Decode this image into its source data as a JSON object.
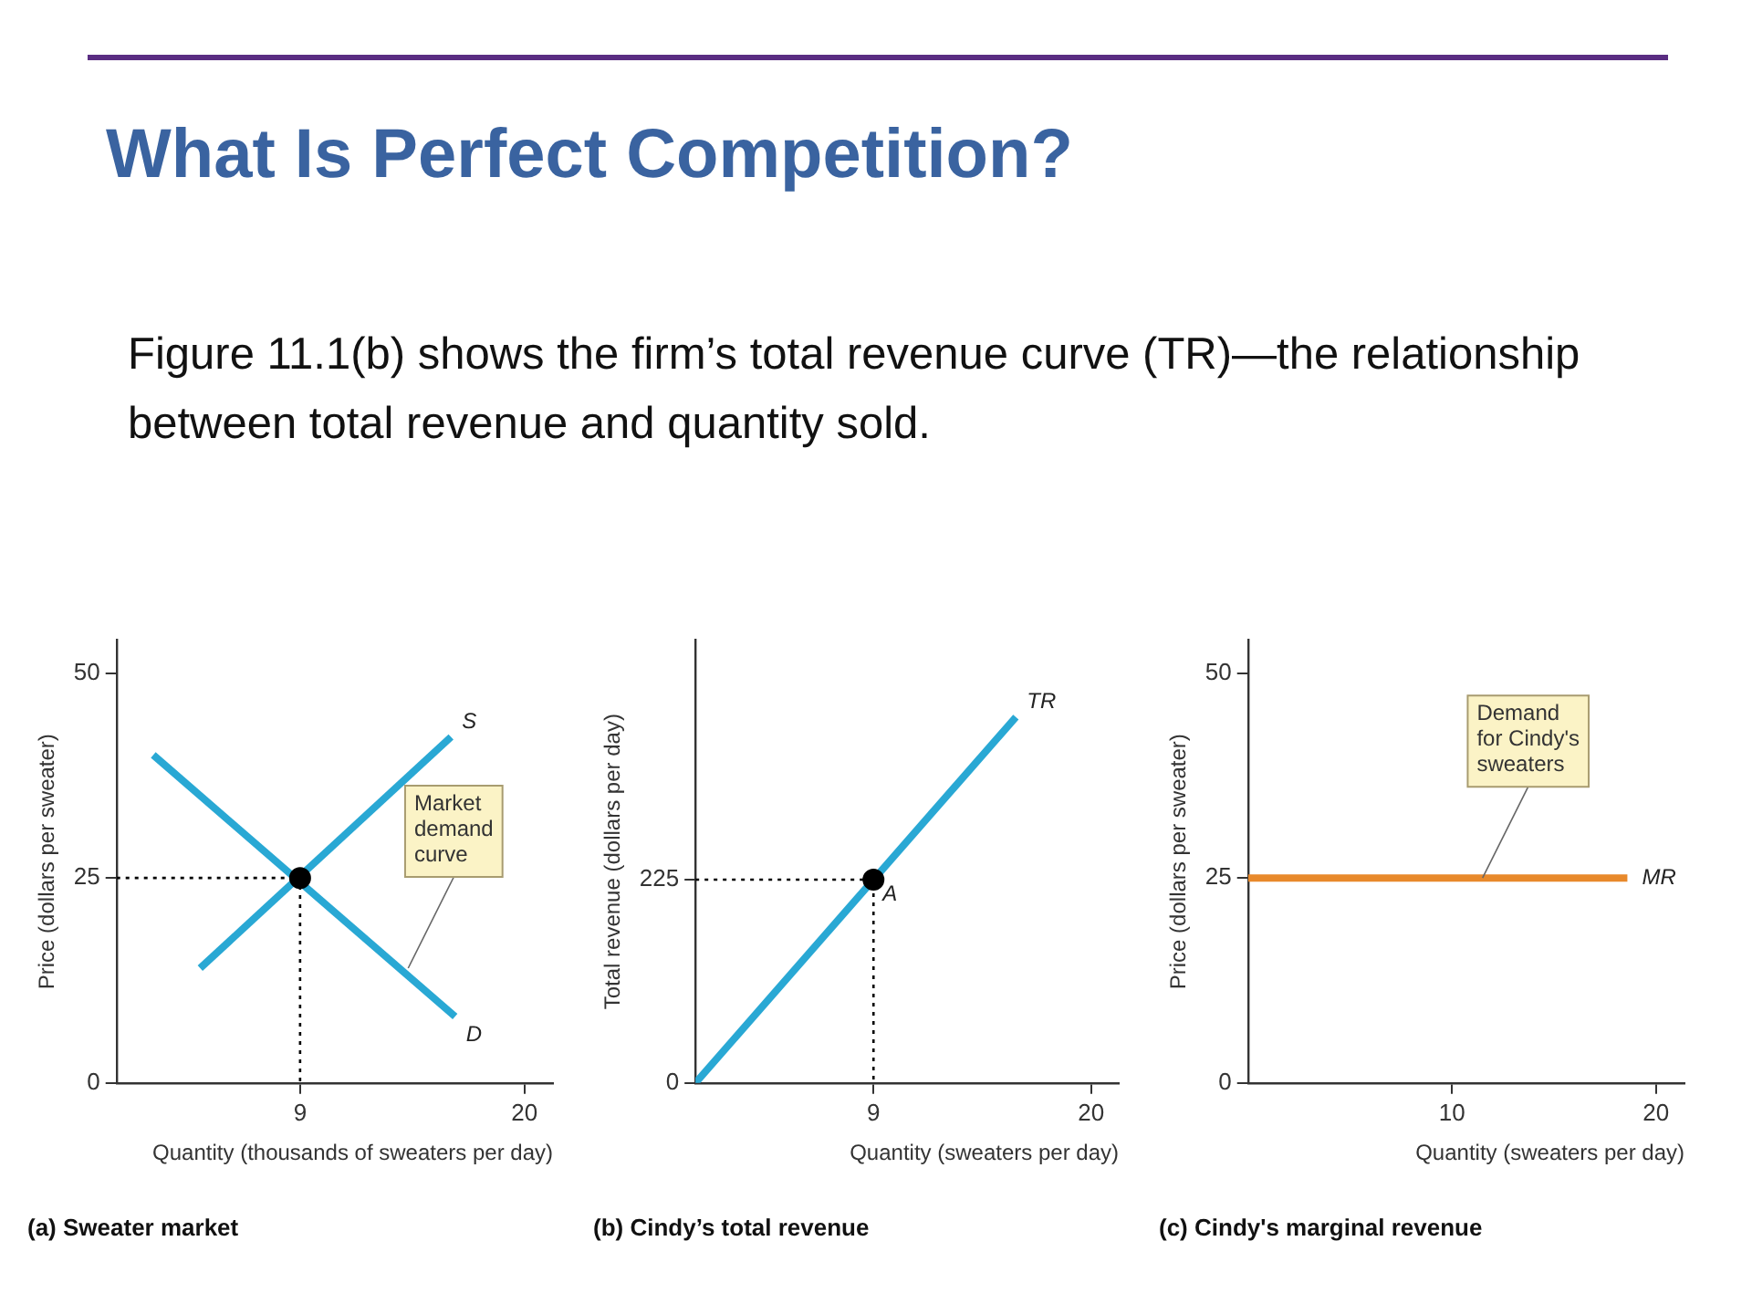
{
  "chart_data": [
    {
      "type": "other",
      "title": "What Is Perfect Competition?",
      "annotations": [
        "Figure 11.1(b) shows the firm’s total revenue curve (TR)—the relationship between total revenue and quantity sold."
      ]
    },
    {
      "type": "line",
      "title": "(a) Sweater market",
      "xlabel": "Quantity (thousands of sweaters per day)",
      "ylabel": "Price (dollars per sweater)",
      "xlim": [
        0,
        21.4
      ],
      "ylim": [
        0,
        54
      ],
      "xticks": [
        9,
        20
      ],
      "yticks": [
        0,
        25,
        50
      ],
      "grid": false,
      "legend": false,
      "annotations": [
        {
          "text": "Market demand curve",
          "x": 14.3,
          "y": 14
        }
      ],
      "series": [
        {
          "color": "#000000",
          "line_style": "dotted",
          "x": [
            0,
            9,
            9
          ],
          "values": [
            25,
            25,
            0
          ]
        },
        {
          "name": "S",
          "color": "#29a8d4",
          "x": [
            4.1,
            16.4
          ],
          "values": [
            14,
            42.2
          ]
        },
        {
          "name": "D",
          "color": "#29a8d4",
          "x": [
            1.8,
            16.6
          ],
          "values": [
            40,
            8.1
          ]
        },
        {
          "type": "scatter",
          "marker": "circle",
          "color": "#000000",
          "x": [
            9
          ],
          "values": [
            25
          ]
        }
      ]
    },
    {
      "type": "line",
      "title": "(b) Cindy’s total revenue",
      "xlabel": "Quantity (sweaters per day)",
      "ylabel": "Total revenue (dollars per day)",
      "xlim": [
        0,
        21.4
      ],
      "ylim": [
        0,
        490
      ],
      "xticks": [
        9,
        20
      ],
      "yticks": [
        0,
        225
      ],
      "grid": false,
      "legend": false,
      "series": [
        {
          "color": "#000000",
          "line_style": "dotted",
          "x": [
            0,
            9,
            9
          ],
          "values": [
            225,
            225,
            0
          ]
        },
        {
          "name": "TR",
          "color": "#29a8d4",
          "x": [
            0,
            16.2
          ],
          "values": [
            0,
            405
          ]
        },
        {
          "type": "scatter",
          "name": "A",
          "marker": "circle",
          "color": "#000000",
          "x": [
            9
          ],
          "values": [
            225
          ]
        }
      ]
    },
    {
      "type": "line",
      "title": "(c) Cindy's marginal revenue",
      "xlabel": "Quantity (sweaters per day)",
      "ylabel": "Price (dollars per sweater)",
      "xlim": [
        0,
        21.4
      ],
      "ylim": [
        0,
        54
      ],
      "xticks": [
        10,
        20
      ],
      "yticks": [
        0,
        25,
        50
      ],
      "grid": false,
      "legend": false,
      "annotations": [
        {
          "text": "Demand for Cindy's sweaters",
          "x": 11.5,
          "y": 25
        }
      ],
      "series": [
        {
          "name": "MR",
          "color": "#e8892b",
          "x": [
            0,
            18.6
          ],
          "values": [
            25,
            25
          ]
        }
      ]
    }
  ]
}
